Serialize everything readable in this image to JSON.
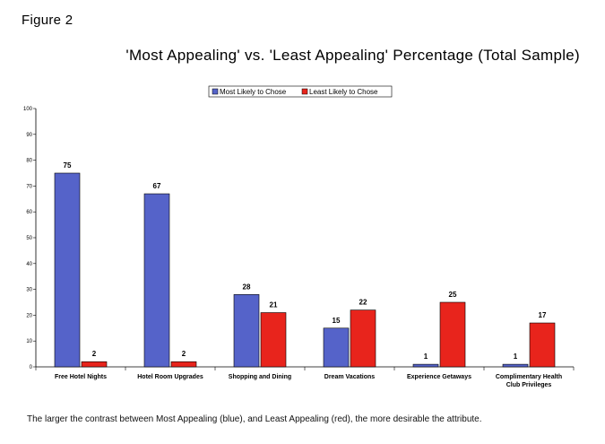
{
  "figure_label": "Figure 2",
  "caption": "The larger the contrast between Most Appealing (blue), and Least Appealing (red), the more desirable the attribute.",
  "chart_data": {
    "type": "bar",
    "title": "'Most Appealing' vs. 'Least Appealing' Percentage (Total Sample)",
    "xlabel": "",
    "ylabel": "",
    "ylim": [
      0,
      100
    ],
    "yticks": [
      0,
      10,
      20,
      30,
      40,
      50,
      60,
      70,
      80,
      90,
      100
    ],
    "grid": false,
    "legend_position": "top-center",
    "categories": [
      [
        "Free Hotel Nights"
      ],
      [
        "Hotel Room Upgrades"
      ],
      [
        "Shopping and Dining"
      ],
      [
        "Dream Vacations"
      ],
      [
        "Experience Getaways"
      ],
      [
        "Complimentary Health",
        "Club Privileges"
      ]
    ],
    "series": [
      {
        "name": "Most Likely to Chose",
        "color": "#5563c9",
        "values": [
          75,
          67,
          28,
          15,
          1,
          1
        ]
      },
      {
        "name": "Least Likely to Chose",
        "color": "#e8241c",
        "values": [
          2,
          2,
          21,
          22,
          25,
          17
        ]
      }
    ]
  }
}
